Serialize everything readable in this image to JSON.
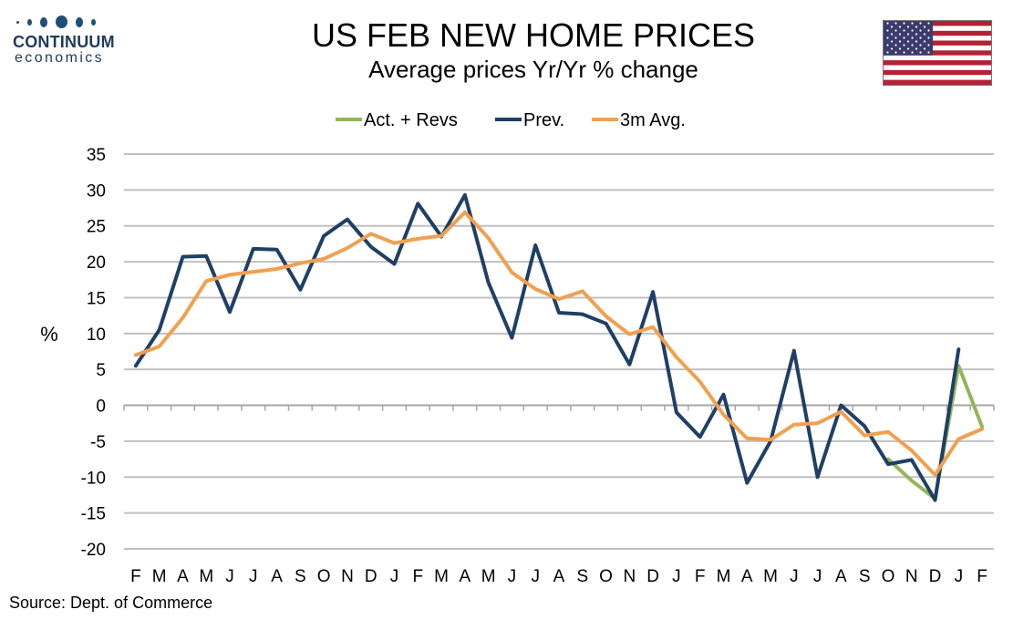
{
  "logo": {
    "name": "CONTINUUM",
    "sub": "economics"
  },
  "header": {
    "title": "US FEB NEW HOME PRICES",
    "subtitle": "Average prices Yr/Yr % change"
  },
  "flag_icon": "us-flag-icon",
  "source": "Source: Dept. of Commerce",
  "colors": {
    "act": "#92b55a",
    "prev": "#1f3f66",
    "avg": "#f0a050",
    "grid": "#c0c0c0",
    "brand": "#1f4e79"
  },
  "chart_data": {
    "type": "line",
    "title": "US FEB NEW HOME PRICES",
    "subtitle": "Average prices Yr/Yr % change",
    "ylabel": "%",
    "ylim": [
      -20,
      35
    ],
    "yticks": [
      35,
      30,
      25,
      20,
      15,
      10,
      5,
      0,
      -5,
      -10,
      -15,
      -20
    ],
    "grid": true,
    "legend_position": "top-center",
    "x": [
      "F",
      "M",
      "A",
      "M",
      "J",
      "J",
      "A",
      "S",
      "O",
      "N",
      "D",
      "J",
      "F",
      "M",
      "A",
      "M",
      "J",
      "J",
      "A",
      "S",
      "O",
      "N",
      "D",
      "J",
      "F",
      "M",
      "A",
      "M",
      "J",
      "J",
      "A",
      "S",
      "O",
      "N",
      "D",
      "J",
      "F"
    ],
    "series": [
      {
        "name": "Act. + Revs",
        "color": "#92b55a",
        "values": [
          null,
          null,
          null,
          null,
          null,
          null,
          null,
          null,
          null,
          null,
          null,
          null,
          null,
          null,
          null,
          null,
          null,
          null,
          null,
          null,
          null,
          null,
          null,
          null,
          null,
          null,
          null,
          null,
          null,
          null,
          null,
          null,
          -7.5,
          -10.5,
          -13.0,
          5.5,
          -3.0
        ]
      },
      {
        "name": "Prev.",
        "color": "#1f3f66",
        "values": [
          5.5,
          10.5,
          20.7,
          20.8,
          13.0,
          21.8,
          21.7,
          16.1,
          23.6,
          25.9,
          22.1,
          19.7,
          28.1,
          23.5,
          29.3,
          17.1,
          9.4,
          22.3,
          12.9,
          12.7,
          11.4,
          5.7,
          15.8,
          -1.0,
          -4.4,
          1.5,
          -10.8,
          -5.0,
          7.6,
          -10.0,
          0.0,
          -2.9,
          -8.2,
          -7.6,
          -13.2,
          7.8,
          null
        ]
      },
      {
        "name": "3m Avg.",
        "color": "#f0a050",
        "values": [
          7.0,
          8.2,
          12.2,
          17.3,
          18.2,
          18.6,
          19.0,
          19.8,
          20.4,
          21.9,
          23.9,
          22.6,
          23.2,
          23.6,
          26.9,
          23.3,
          18.5,
          16.2,
          14.8,
          15.9,
          12.4,
          9.9,
          10.9,
          6.7,
          3.3,
          -1.3,
          -4.6,
          -4.8,
          -2.7,
          -2.5,
          -0.9,
          -4.2,
          -3.7,
          -6.3,
          -9.7,
          -4.7,
          -3.3
        ]
      }
    ]
  }
}
